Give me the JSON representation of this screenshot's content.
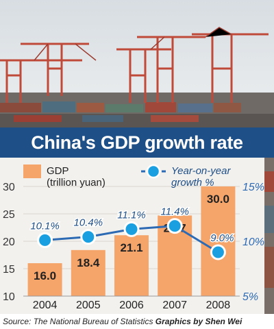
{
  "chart_data": {
    "type": "bar",
    "title": "China's GDP growth rate",
    "categories": [
      "2004",
      "2005",
      "2006",
      "2007",
      "2008"
    ],
    "series": [
      {
        "name": "GDP (trillion yuan)",
        "kind": "bar",
        "axis": "left",
        "values": [
          16.0,
          18.4,
          21.1,
          24.7,
          30.0
        ],
        "labels": [
          "16.0",
          "18.4",
          "21.1",
          "24.7",
          "30.0"
        ]
      },
      {
        "name": "Year-on-year growth %",
        "kind": "line",
        "axis": "right",
        "values": [
          10.1,
          10.4,
          11.1,
          11.4,
          9.0
        ],
        "labels": [
          "10.1%",
          "10.4%",
          "11.1%",
          "11.4%",
          "9.0%"
        ]
      }
    ],
    "left_axis": {
      "ylim": [
        10,
        30
      ],
      "ticks": [
        "10",
        "15",
        "20",
        "25",
        "30"
      ]
    },
    "right_axis": {
      "ylim": [
        5,
        15
      ],
      "ticks": [
        "5%",
        "10%",
        "15%"
      ]
    },
    "legend": {
      "gdp_line1": "GDP",
      "gdp_line2": "(trillion yuan)",
      "growth_line1": "Year-on-year",
      "growth_line2": "growth %",
      "placement": "top"
    },
    "colors": {
      "bar": "#f5a46a",
      "line": "#2d6ab4",
      "marker": "#1aa0e0",
      "title_band": "#1e4f86"
    }
  },
  "footer": {
    "source": "Source: The National Bureau of Statistics",
    "credit": "Graphics by Shen Wei"
  }
}
